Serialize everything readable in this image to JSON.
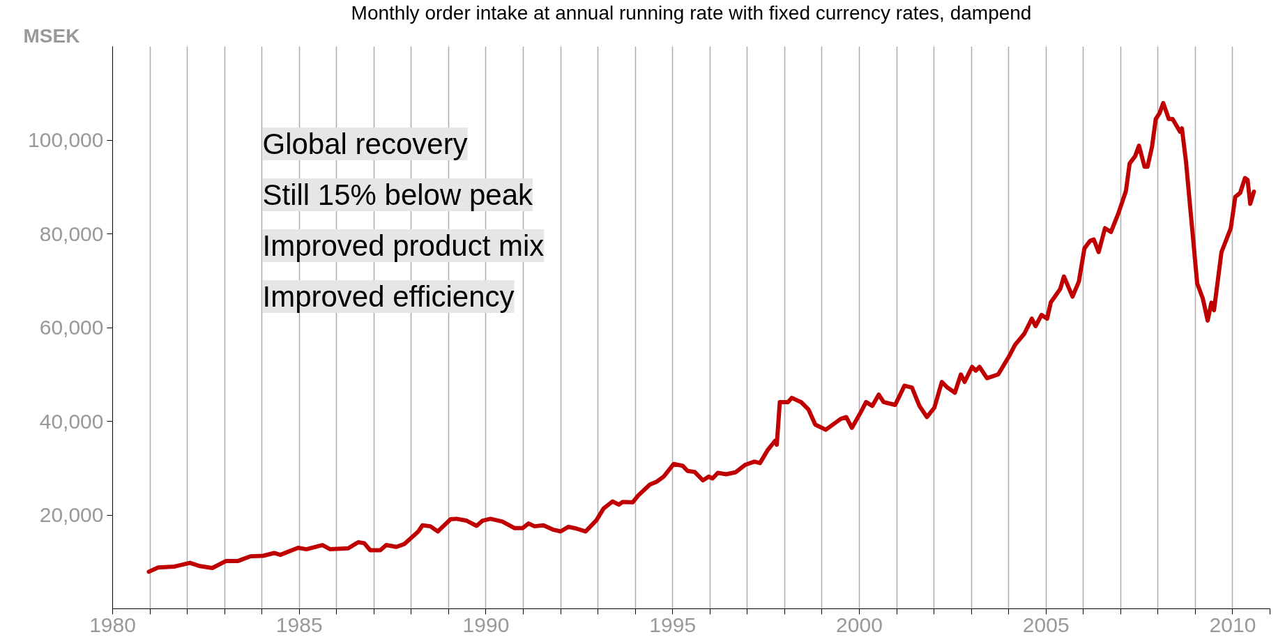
{
  "chart_data": {
    "type": "line",
    "title": "Monthly order intake at annual running rate with fixed currency rates, dampend",
    "ylabel": "MSEK",
    "annotations": [
      "Global recovery",
      "Still 15% below peak",
      "Improved product mix",
      "Improved efficiency"
    ],
    "xlim": [
      1980,
      2011
    ],
    "ylim": [
      0,
      120000
    ],
    "xticks": [
      1980,
      {
        "value": 1981,
        "label": null
      },
      {
        "value": 1982,
        "label": null
      },
      {
        "value": 1983,
        "label": null
      },
      {
        "value": 1984,
        "label": null
      },
      1985,
      {
        "value": 1986,
        "label": null
      },
      {
        "value": 1987,
        "label": null
      },
      {
        "value": 1988,
        "label": null
      },
      {
        "value": 1989,
        "label": null
      },
      1990,
      {
        "value": 1991,
        "label": null
      },
      {
        "value": 1992,
        "label": null
      },
      {
        "value": 1993,
        "label": null
      },
      {
        "value": 1994,
        "label": null
      },
      1995,
      {
        "value": 1996,
        "label": null
      },
      {
        "value": 1997,
        "label": null
      },
      {
        "value": 1998,
        "label": null
      },
      {
        "value": 1999,
        "label": null
      },
      2000,
      {
        "value": 2001,
        "label": null
      },
      {
        "value": 2002,
        "label": null
      },
      {
        "value": 2003,
        "label": null
      },
      {
        "value": 2004,
        "label": null
      },
      2005,
      {
        "value": 2006,
        "label": null
      },
      {
        "value": 2007,
        "label": null
      },
      {
        "value": 2008,
        "label": null
      },
      {
        "value": 2009,
        "label": null
      },
      2010,
      {
        "value": 2011,
        "label": null
      }
    ],
    "yticks": [
      {
        "value": 20000,
        "label": "20,000"
      },
      {
        "value": 40000,
        "label": "40,000"
      },
      {
        "value": 60000,
        "label": "60,000"
      },
      {
        "value": 80000,
        "label": "80,000"
      },
      {
        "value": 100000,
        "label": "100,000"
      }
    ],
    "grid": "x",
    "line_style": "solid",
    "series": [
      {
        "color": "#c00000",
        "x": [
          1980.97,
          1981.22,
          1981.65,
          1982.07,
          1982.34,
          1982.67,
          1983.04,
          1983.36,
          1983.69,
          1984.03,
          1984.33,
          1984.49,
          1984.97,
          1985.19,
          1985.62,
          1985.83,
          1986.31,
          1986.58,
          1986.74,
          1986.9,
          1987.17,
          1987.33,
          1987.6,
          1987.81,
          1988.19,
          1988.3,
          1988.51,
          1988.71,
          1989.05,
          1989.21,
          1989.48,
          1989.75,
          1989.91,
          1990.12,
          1990.44,
          1990.77,
          1990.98,
          1991.14,
          1991.3,
          1991.54,
          1991.79,
          1992.0,
          1992.21,
          1992.43,
          1992.67,
          1992.96,
          1993.15,
          1993.39,
          1993.56,
          1993.66,
          1993.93,
          1994.07,
          1994.39,
          1994.57,
          1994.76,
          1995.03,
          1995.27,
          1995.4,
          1995.59,
          1995.81,
          1995.97,
          1996.07,
          1996.21,
          1996.43,
          1996.68,
          1996.94,
          1997.19,
          1997.34,
          1997.54,
          1997.74,
          1997.79,
          1997.87,
          1998.09,
          1998.19,
          1998.44,
          1998.64,
          1998.82,
          1999.1,
          1999.5,
          1999.65,
          1999.8,
          2000.05,
          2000.18,
          2000.35,
          2000.52,
          2000.65,
          2000.96,
          2001.21,
          2001.41,
          2001.61,
          2001.81,
          2002.01,
          2002.21,
          2002.36,
          2002.56,
          2002.72,
          2002.82,
          2003.02,
          2003.12,
          2003.22,
          2003.42,
          2003.72,
          2004.02,
          2004.17,
          2004.42,
          2004.62,
          2004.72,
          2004.88,
          2005.03,
          2005.13,
          2005.38,
          2005.48,
          2005.71,
          2005.88,
          2006.03,
          2006.18,
          2006.28,
          2006.41,
          2006.58,
          2006.74,
          2006.94,
          2007.14,
          2007.24,
          2007.39,
          2007.49,
          2007.64,
          2007.72,
          2007.84,
          2007.94,
          2008.04,
          2008.14,
          2008.29,
          2008.39,
          2008.59,
          2008.64,
          2008.75,
          2008.85,
          2009.05,
          2009.2,
          2009.33,
          2009.43,
          2009.5,
          2009.7,
          2009.95,
          2010.07,
          2010.2,
          2010.33,
          2010.4,
          2010.47,
          2010.57
        ],
        "values": [
          7900,
          8800,
          9000,
          9800,
          9100,
          8700,
          10200,
          10200,
          11200,
          11300,
          11900,
          11500,
          13000,
          12700,
          13600,
          12700,
          12900,
          14200,
          14000,
          12500,
          12500,
          13600,
          13200,
          13800,
          16500,
          17800,
          17600,
          16500,
          19100,
          19200,
          18800,
          17700,
          18800,
          19200,
          18600,
          17200,
          17200,
          18200,
          17600,
          17800,
          16900,
          16500,
          17500,
          17100,
          16500,
          18900,
          21400,
          22900,
          22200,
          22800,
          22700,
          24100,
          26500,
          27100,
          28200,
          30900,
          30500,
          29400,
          29200,
          27400,
          28200,
          27800,
          29000,
          28700,
          29100,
          30700,
          31400,
          31100,
          33800,
          35800,
          35000,
          44100,
          44100,
          45000,
          44100,
          42500,
          39300,
          38200,
          40500,
          40900,
          38600,
          42100,
          44100,
          43300,
          45700,
          44100,
          43500,
          47600,
          47200,
          43300,
          40900,
          42900,
          48400,
          47200,
          46100,
          50000,
          48400,
          51600,
          50800,
          51600,
          49200,
          50000,
          54000,
          56300,
          58700,
          61900,
          60300,
          62700,
          61900,
          65400,
          68200,
          70900,
          66600,
          69800,
          76900,
          78500,
          78800,
          76100,
          81200,
          80400,
          84400,
          89100,
          95000,
          96600,
          98800,
          94300,
          94300,
          98600,
          104500,
          105700,
          107900,
          104500,
          104500,
          101800,
          102500,
          95400,
          86700,
          69400,
          66200,
          61500,
          65300,
          63700,
          76100,
          81200,
          87900,
          88700,
          91900,
          91500,
          86400,
          89000
        ]
      }
    ]
  }
}
